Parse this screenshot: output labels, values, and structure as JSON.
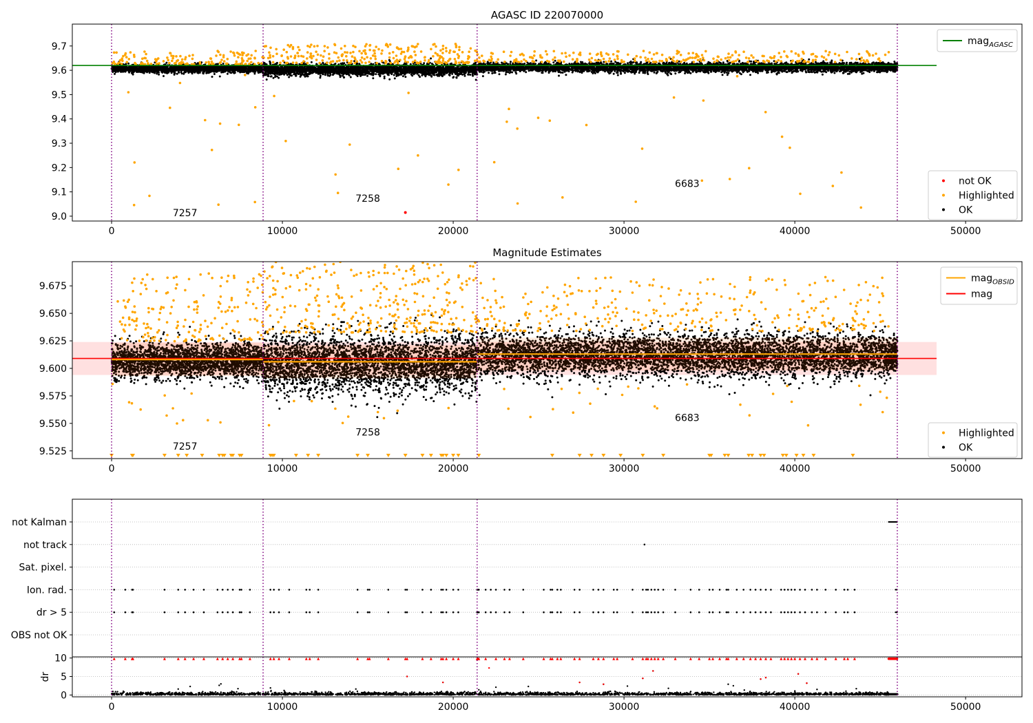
{
  "chart_data": [
    {
      "type": "scatter",
      "title": "AGASC ID 220070000",
      "xlim": [
        -2300,
        53300
      ],
      "ylim": [
        8.98,
        9.79
      ],
      "x_ticks": [
        0,
        10000,
        20000,
        30000,
        40000,
        50000
      ],
      "x_tick_labels": [
        "0",
        "10000",
        "20000",
        "30000",
        "40000",
        "50000"
      ],
      "y_ticks": [
        9.0,
        9.1,
        9.2,
        9.3,
        9.4,
        9.5,
        9.6,
        9.7
      ],
      "y_tick_labels": [
        "9.0",
        "9.1",
        "9.2",
        "9.3",
        "9.4",
        "9.5",
        "9.6",
        "9.7"
      ],
      "obs_boundaries": [
        0,
        8870,
        21400,
        46000
      ],
      "obs_labels": [
        {
          "text": "7257",
          "x": 4300,
          "y": 9.0
        },
        {
          "text": "7258",
          "x": 15000,
          "y": 9.06
        },
        {
          "text": "6683",
          "x": 33700,
          "y": 9.12
        }
      ],
      "segments": [
        {
          "x0": 0,
          "x1": 8870,
          "center": 9.607,
          "spread": 0.008,
          "n": 1800,
          "hi_count": 140,
          "hi_max": 9.68,
          "out_count": 14
        },
        {
          "x0": 8870,
          "x1": 21400,
          "center": 9.603,
          "spread": 0.012,
          "n": 2600,
          "hi_count": 260,
          "hi_max": 9.71,
          "out_count": 10
        },
        {
          "x0": 21400,
          "x1": 45500,
          "center": 9.612,
          "spread": 0.01,
          "n": 4200,
          "hi_count": 260,
          "hi_max": 9.68,
          "out_count": 24
        },
        {
          "x0": 45500,
          "x1": 46000,
          "center": 9.613,
          "spread": 0.007,
          "n": 150,
          "hi_count": 0,
          "hi_max": 9.6,
          "out_count": 0
        }
      ],
      "not_ok_points": [
        {
          "x": 17200,
          "y": 9.015
        }
      ],
      "reference_lines": [
        {
          "name": "mag_AGASC",
          "value": 9.62,
          "color": "#008000",
          "x0": -2300,
          "x1": 48300
        }
      ],
      "legend_top": [
        {
          "label": "mag",
          "sub": "AGASC",
          "kind": "line",
          "color": "#008000"
        }
      ],
      "legend_bottom": [
        {
          "label": "not OK",
          "kind": "dot",
          "color": "#ff0000"
        },
        {
          "label": "Highlighted",
          "kind": "dot",
          "color": "#ffa500"
        },
        {
          "label": "OK",
          "kind": "dot",
          "color": "#000000"
        }
      ]
    },
    {
      "type": "scatter",
      "title": "Magnitude Estimates",
      "xlim": [
        -2300,
        53300
      ],
      "ylim": [
        9.518,
        9.697
      ],
      "x_ticks": [
        0,
        10000,
        20000,
        30000,
        40000,
        50000
      ],
      "x_tick_labels": [
        "0",
        "10000",
        "20000",
        "30000",
        "40000",
        "50000"
      ],
      "y_ticks": [
        9.525,
        9.55,
        9.575,
        9.6,
        9.625,
        9.65,
        9.675
      ],
      "y_tick_labels": [
        "9.525",
        "9.550",
        "9.575",
        "9.600",
        "9.625",
        "9.650",
        "9.675"
      ],
      "obs_boundaries": [
        0,
        8870,
        21400,
        46000
      ],
      "obs_labels": [
        {
          "text": "7257",
          "x": 4300,
          "y": 9.526
        },
        {
          "text": "7258",
          "x": 15000,
          "y": 9.539
        },
        {
          "text": "6683",
          "x": 33700,
          "y": 9.552
        }
      ],
      "segments": [
        {
          "x0": 0,
          "x1": 8870,
          "center": 9.607,
          "spread": 0.008,
          "n": 2300,
          "hi_count": 180,
          "hi_max": 9.688,
          "out_count": 12
        },
        {
          "x0": 8870,
          "x1": 21400,
          "center": 9.604,
          "spread": 0.013,
          "n": 3200,
          "hi_count": 320,
          "hi_max": 9.697,
          "out_count": 10
        },
        {
          "x0": 21400,
          "x1": 45500,
          "center": 9.612,
          "spread": 0.01,
          "n": 5200,
          "hi_count": 320,
          "hi_max": 9.683,
          "out_count": 26
        },
        {
          "x0": 45500,
          "x1": 46000,
          "center": 9.612,
          "spread": 0.007,
          "n": 200,
          "hi_count": 0,
          "hi_max": 9.6,
          "out_count": 0
        }
      ],
      "obsid_mags": [
        {
          "x0": 0,
          "x1": 8870,
          "value": 9.608
        },
        {
          "x0": 8870,
          "x1": 21400,
          "value": 9.606
        },
        {
          "x0": 21400,
          "x1": 46000,
          "value": 9.613
        }
      ],
      "mag": {
        "value": 9.609,
        "band": [
          9.594,
          9.624
        ],
        "x0": -2300,
        "x1": 48300
      },
      "clipped_markers_x": [
        0,
        1200,
        1250,
        3100,
        3900,
        4400,
        5300,
        6300,
        6500,
        6600,
        7000,
        7100,
        7500,
        7600,
        9300,
        9400,
        9500,
        10800,
        11500,
        12100,
        14400,
        15000,
        16200,
        17200,
        18200,
        18700,
        19300,
        19400,
        19600,
        20000,
        20300,
        21500,
        25800,
        27400,
        28100,
        28800,
        29800,
        31100,
        32300,
        35000,
        35100,
        35900,
        36100,
        37300,
        37500,
        38000,
        38200,
        39300,
        39500,
        40100,
        40500,
        41100,
        43400
      ],
      "legend_top": [
        {
          "label": "mag",
          "sub": "OBSID",
          "kind": "line",
          "color": "#ffa500"
        },
        {
          "label": "mag",
          "kind": "line",
          "color": "#ff0000"
        }
      ],
      "legend_bottom": [
        {
          "label": "Highlighted",
          "kind": "dot",
          "color": "#ffa500"
        },
        {
          "label": "OK",
          "kind": "dot",
          "color": "#000000"
        }
      ]
    },
    {
      "type": "scatter",
      "xlim": [
        -2300,
        53300
      ],
      "x_ticks": [
        0,
        10000,
        20000,
        30000,
        40000,
        50000
      ],
      "x_tick_labels": [
        "0",
        "10000",
        "20000",
        "30000",
        "40000",
        "50000"
      ],
      "obs_boundaries": [
        0,
        8870,
        21400,
        46000
      ],
      "flags": [
        "not Kalman",
        "not track",
        "Sat. pixel.",
        "Ion. rad.",
        "dr > 5",
        "OBS not OK"
      ],
      "flag_points": {
        "not Kalman": {
          "ranges": [
            [
              45500,
              46000
            ]
          ],
          "x": []
        },
        "not track": {
          "ranges": [],
          "x": [
            31200
          ]
        },
        "Sat. pixel.": {
          "ranges": [],
          "x": []
        },
        "Ion. rad.": {
          "ranges": [
            [
              45900,
              46000
            ]
          ],
          "x": [
            150,
            800,
            1200,
            1250,
            3100,
            3900,
            4300,
            4800,
            5400,
            6200,
            6500,
            6800,
            7100,
            7500,
            7600,
            8100,
            9300,
            9500,
            9800,
            10400,
            11400,
            11600,
            12100,
            14400,
            15000,
            15100,
            16200,
            17200,
            17300,
            18200,
            18700,
            19300,
            19400,
            19600,
            20000,
            20300,
            21400,
            21450,
            21500,
            21900,
            22200,
            22500,
            23000,
            23300,
            24100,
            25300,
            25700,
            25800,
            26100,
            26300,
            27100,
            27400,
            28200,
            28500,
            28800,
            29400,
            29600,
            30500,
            31100,
            31300,
            31400,
            31600,
            31800,
            32000,
            32300,
            33000,
            33900,
            34400,
            35000,
            35200,
            35600,
            36000,
            36100,
            36600,
            37000,
            37400,
            37700,
            38000,
            38300,
            38600,
            39200,
            39400,
            39600,
            39800,
            40000,
            40300,
            40600,
            41000,
            41300,
            41800,
            42400,
            42900,
            43100,
            43500
          ]
        },
        "dr > 5": {
          "ranges": [
            [
              45900,
              46000
            ]
          ],
          "x": [
            150,
            800,
            1200,
            1250,
            3100,
            3900,
            4300,
            4800,
            5400,
            6200,
            6500,
            6800,
            7100,
            7500,
            7600,
            8100,
            9300,
            9500,
            9800,
            10400,
            11400,
            11600,
            12100,
            14400,
            15000,
            15100,
            16200,
            17200,
            17300,
            18200,
            18700,
            19300,
            19400,
            19600,
            20000,
            20300,
            21400,
            21450,
            21500,
            21900,
            22200,
            22500,
            23000,
            23300,
            24100,
            25300,
            25700,
            25800,
            26100,
            26300,
            27100,
            27400,
            28200,
            28500,
            28800,
            29400,
            29600,
            30500,
            31100,
            31300,
            31400,
            31600,
            31800,
            32000,
            32300,
            33000,
            33900,
            34400,
            35000,
            35200,
            35600,
            36000,
            36100,
            36600,
            37000,
            37400,
            37700,
            38000,
            38300,
            38600,
            39200,
            39400,
            39600,
            39800,
            40000,
            40300,
            40600,
            41000,
            41300,
            41800,
            42400,
            42900,
            43100,
            43500
          ]
        },
        "OBS not OK": {
          "ranges": [],
          "x": []
        }
      }
    },
    {
      "type": "scatter",
      "ylabel": "dr",
      "xlim": [
        -2300,
        53300
      ],
      "ylim": [
        -0.5,
        10.3
      ],
      "x_ticks": [
        0,
        10000,
        20000,
        30000,
        40000,
        50000
      ],
      "x_tick_labels": [
        "0",
        "10000",
        "20000",
        "30000",
        "40000",
        "50000"
      ],
      "y_ticks": [
        0,
        5,
        10
      ],
      "y_tick_labels": [
        "0",
        "5",
        "10"
      ],
      "obs_boundaries": [
        0,
        8870,
        21400,
        46000
      ],
      "baseline_n": 2600,
      "baseline_range": [
        0,
        45500
      ],
      "scattered": [
        {
          "x": 3900,
          "y": 1.6
        },
        {
          "x": 4600,
          "y": 2.3
        },
        {
          "x": 6300,
          "y": 2.6
        },
        {
          "x": 6400,
          "y": 3.0
        },
        {
          "x": 7400,
          "y": 1.7
        },
        {
          "x": 9300,
          "y": 1.9
        },
        {
          "x": 10100,
          "y": 1.2
        },
        {
          "x": 14300,
          "y": 1.6
        },
        {
          "x": 17300,
          "y": 5.0
        },
        {
          "x": 19400,
          "y": 3.4
        },
        {
          "x": 21500,
          "y": 1.4
        },
        {
          "x": 22500,
          "y": 2.1
        },
        {
          "x": 24400,
          "y": 2.3
        },
        {
          "x": 27400,
          "y": 3.4
        },
        {
          "x": 28800,
          "y": 2.9
        },
        {
          "x": 30200,
          "y": 2.4
        },
        {
          "x": 31100,
          "y": 4.5
        },
        {
          "x": 31700,
          "y": 6.5
        },
        {
          "x": 32600,
          "y": 1.8
        },
        {
          "x": 36100,
          "y": 2.9
        },
        {
          "x": 36400,
          "y": 2.5
        },
        {
          "x": 38000,
          "y": 4.3
        },
        {
          "x": 38300,
          "y": 4.7
        },
        {
          "x": 40200,
          "y": 5.7
        },
        {
          "x": 40700,
          "y": 3.2
        },
        {
          "x": 41300,
          "y": 1.5
        },
        {
          "x": 43600,
          "y": 1.7
        }
      ],
      "red_points": [
        {
          "x": 17300,
          "y": 5.0
        },
        {
          "x": 19400,
          "y": 3.4
        },
        {
          "x": 22100,
          "y": 7.3
        },
        {
          "x": 27400,
          "y": 3.4
        },
        {
          "x": 28800,
          "y": 2.9
        },
        {
          "x": 31100,
          "y": 4.5
        },
        {
          "x": 31700,
          "y": 6.5
        },
        {
          "x": 38000,
          "y": 4.3
        },
        {
          "x": 38300,
          "y": 4.7
        },
        {
          "x": 40200,
          "y": 5.7
        },
        {
          "x": 40700,
          "y": 3.2
        }
      ],
      "red_top_x": [
        150,
        800,
        1200,
        1250,
        3100,
        3900,
        4300,
        4800,
        5400,
        6200,
        6500,
        6800,
        7100,
        7500,
        7600,
        8100,
        9300,
        9500,
        9800,
        10400,
        11400,
        11600,
        12100,
        14400,
        15000,
        15100,
        16200,
        17200,
        17300,
        18200,
        18700,
        19300,
        19400,
        19600,
        20000,
        20300,
        21400,
        21450,
        21500,
        21900,
        22500,
        23000,
        23300,
        24100,
        25300,
        25700,
        25800,
        26100,
        26300,
        27100,
        27400,
        28200,
        28500,
        28800,
        29400,
        29600,
        30500,
        31100,
        31300,
        31400,
        31600,
        31800,
        32000,
        32300,
        33000,
        33900,
        34400,
        35000,
        35200,
        35600,
        36000,
        36100,
        36600,
        37000,
        37400,
        37700,
        38000,
        38300,
        38600,
        39200,
        39400,
        39600,
        39800,
        40000,
        40300,
        40600,
        41000,
        41300,
        41800,
        42400,
        42900,
        43100,
        43500
      ],
      "red_top_range": [
        45500,
        46000
      ]
    }
  ]
}
